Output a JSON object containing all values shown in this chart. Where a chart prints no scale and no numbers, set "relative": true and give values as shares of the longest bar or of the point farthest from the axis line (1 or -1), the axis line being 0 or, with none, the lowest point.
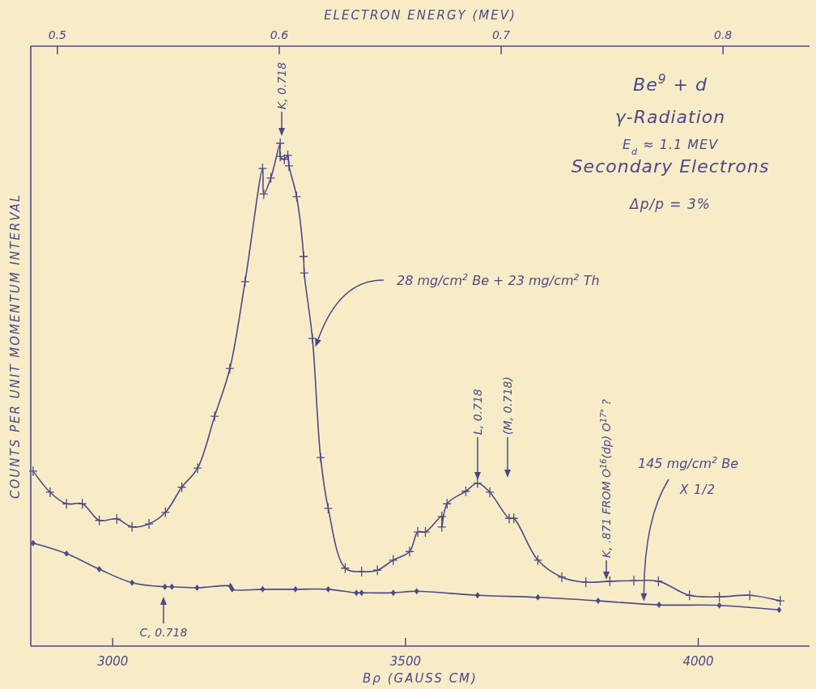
{
  "chart_data": {
    "type": "line",
    "relative": true,
    "title": "Be$^{9}$ + d",
    "subtitle": "γ-Radiation",
    "xlabel": "Bρ (GAUSS CM)",
    "ylabel": "COUNTS PER UNIT MOMENTUM INTERVAL",
    "x2label": "ELECTRON ENERGY (MEV)",
    "xlim": [
      2860,
      4190
    ],
    "xticks": [
      3000,
      3500,
      4000
    ],
    "x2lim": [
      0.488,
      0.839
    ],
    "x2ticks": [
      0.5,
      0.6,
      0.7,
      0.8
    ],
    "legend": false,
    "grid": false,
    "annotations": [
      "E$_{d}$ ≈ 1.1 MEV",
      "Secondary Electrons",
      "Δp/p = 3%",
      "X 1/2",
      "K, 0.718",
      "C, 0.718",
      "L, 0.718",
      "(M, 0.718)",
      "K, .871 FROM O$^{16}$(dp) O$^{17*}$ ?"
    ],
    "series": [
      {
        "name": "28 mg/cm$^{2}$ Be + 23 mg/cm$^{2}$ Th",
        "color": "#4b4a87",
        "marker": "cross",
        "x": [
          2864,
          2893,
          2921,
          2948,
          2977,
          3007,
          3033,
          3062,
          3090,
          3118,
          3145,
          3174,
          3200,
          3226,
          3256,
          3258,
          3270,
          3286,
          3286,
          3293,
          3299,
          3301,
          3314,
          3326,
          3327,
          3341,
          3355,
          3368,
          3397,
          3425,
          3452,
          3479,
          3507,
          3521,
          3534,
          3562,
          3562,
          3571,
          3603,
          3623,
          3644,
          3677,
          3685,
          3726,
          3767,
          3808,
          3849,
          3890,
          3932,
          3985,
          4036,
          4088,
          4140
        ],
        "values": [
          0.348,
          0.306,
          0.283,
          0.283,
          0.25,
          0.253,
          0.237,
          0.243,
          0.266,
          0.316,
          0.354,
          0.457,
          0.552,
          0.725,
          0.95,
          0.899,
          0.931,
          1.0,
          0.974,
          0.968,
          0.976,
          0.955,
          0.894,
          0.775,
          0.742,
          0.612,
          0.375,
          0.274,
          0.155,
          0.148,
          0.151,
          0.171,
          0.188,
          0.227,
          0.227,
          0.258,
          0.237,
          0.283,
          0.308,
          0.324,
          0.306,
          0.254,
          0.254,
          0.171,
          0.137,
          0.127,
          0.129,
          0.13,
          0.129,
          0.101,
          0.098,
          0.101,
          0.09
        ]
      },
      {
        "name": "145 mg/cm$^{2}$ Be",
        "color": "#4b4a87",
        "marker": "diamond",
        "x": [
          2864,
          2921,
          2977,
          3033,
          3089,
          3101,
          3144,
          3201,
          3204,
          3256,
          3312,
          3368,
          3416,
          3425,
          3479,
          3519,
          3623,
          3726,
          3829,
          3933,
          4036,
          4138
        ],
        "values": [
          0.205,
          0.184,
          0.153,
          0.126,
          0.118,
          0.118,
          0.116,
          0.119,
          0.113,
          0.113,
          0.113,
          0.113,
          0.106,
          0.106,
          0.106,
          0.109,
          0.101,
          0.097,
          0.09,
          0.082,
          0.081,
          0.072
        ]
      }
    ]
  }
}
